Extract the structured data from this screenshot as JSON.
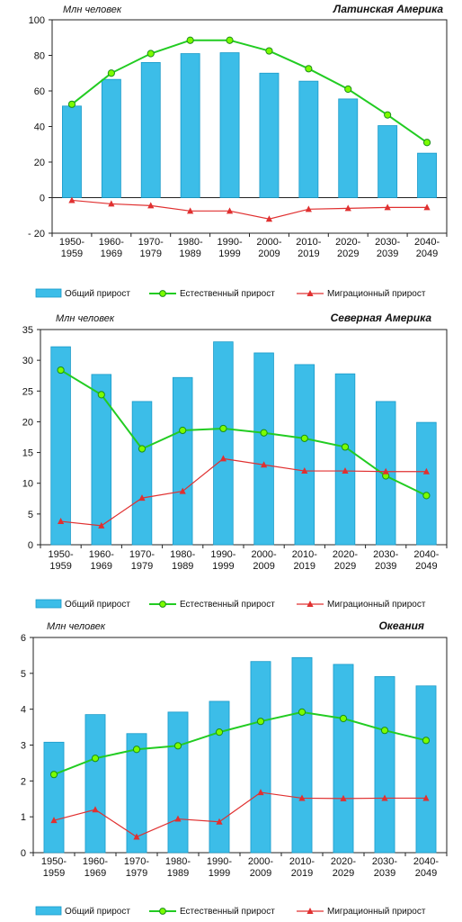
{
  "legend": {
    "total": "Общий прирост",
    "natural": "Естественный прирост",
    "migration": "Миграционный прирост"
  },
  "colors": {
    "bar": "#3cbde8",
    "bar_edge": "#1a9ac9",
    "natural": "#22cc22",
    "marker_fill": "#7cfc00",
    "migration": "#e03030"
  },
  "chart_data": [
    {
      "type": "bar",
      "title": "Латинская Америка",
      "ylabel": "Млн человек",
      "ylim": [
        -20,
        100
      ],
      "yticks": [
        -20,
        0,
        20,
        40,
        60,
        80,
        100
      ],
      "ytick_labels": [
        "- 20",
        "0",
        "20",
        "40",
        "60",
        "80",
        "100"
      ],
      "categories": [
        "1950-1959",
        "1960-1969",
        "1970-1979",
        "1980-1989",
        "1990-1999",
        "2000-2009",
        "2010-2019",
        "2020-2029",
        "2030-2039",
        "2040-2049"
      ],
      "series": [
        {
          "name": "Общий прирост",
          "type": "bar",
          "values": [
            51.5,
            66.5,
            76,
            81,
            81.5,
            70,
            65.5,
            55.5,
            40.5,
            25
          ]
        },
        {
          "name": "Естественный прирост",
          "type": "line",
          "values": [
            52.5,
            70,
            81,
            88.5,
            88.5,
            82.5,
            72.5,
            61,
            46.5,
            31
          ]
        },
        {
          "name": "Миграционный прирост",
          "type": "line",
          "values": [
            -1.5,
            -3.5,
            -4.5,
            -7.5,
            -7.5,
            -12,
            -6.5,
            -6,
            -5.5,
            -5.5
          ]
        }
      ]
    },
    {
      "type": "bar",
      "title": "Северная Америка",
      "ylabel": "Млн человек",
      "ylim": [
        0,
        35
      ],
      "yticks": [
        0,
        5,
        10,
        15,
        20,
        25,
        30,
        35
      ],
      "ytick_labels": [
        "0",
        "5",
        "10",
        "15",
        "20",
        "25",
        "30",
        "35"
      ],
      "categories": [
        "1950-1959",
        "1960-1969",
        "1970-1979",
        "1980-1989",
        "1990-1999",
        "2000-2009",
        "2010-2019",
        "2020-2029",
        "2030-2039",
        "2040-2049"
      ],
      "series": [
        {
          "name": "Общий прирост",
          "type": "bar",
          "values": [
            32.2,
            27.7,
            23.3,
            27.2,
            33,
            31.2,
            29.3,
            27.8,
            23.3,
            19.9
          ]
        },
        {
          "name": "Естественный прирост",
          "type": "line",
          "values": [
            28.4,
            24.4,
            15.6,
            18.6,
            18.9,
            18.2,
            17.3,
            15.9,
            11.2,
            8
          ]
        },
        {
          "name": "Миграционный прирост",
          "type": "line",
          "values": [
            3.8,
            3.1,
            7.6,
            8.7,
            14,
            13,
            12,
            12,
            11.9,
            11.9
          ]
        }
      ]
    },
    {
      "type": "bar",
      "title": "Океания",
      "ylabel": "Млн человек",
      "ylim": [
        0,
        6
      ],
      "yticks": [
        0,
        1,
        2,
        3,
        4,
        5,
        6
      ],
      "ytick_labels": [
        "0",
        "1",
        "2",
        "3",
        "4",
        "5",
        "6"
      ],
      "categories": [
        "1950-1959",
        "1960-1969",
        "1970-1979",
        "1980-1989",
        "1990-1999",
        "2000-2009",
        "2010-2019",
        "2020-2029",
        "2030-2039",
        "2040-2049"
      ],
      "series": [
        {
          "name": "Общий прирост",
          "type": "bar",
          "values": [
            3.08,
            3.85,
            3.32,
            3.92,
            4.22,
            5.33,
            5.44,
            5.25,
            4.91,
            4.65
          ]
        },
        {
          "name": "Естественный прирост",
          "type": "line",
          "values": [
            2.18,
            2.63,
            2.88,
            2.98,
            3.36,
            3.66,
            3.92,
            3.74,
            3.41,
            3.13
          ]
        },
        {
          "name": "Миграционный прирост",
          "type": "line",
          "values": [
            0.9,
            1.2,
            0.44,
            0.94,
            0.86,
            1.68,
            1.52,
            1.51,
            1.52,
            1.52
          ]
        }
      ]
    }
  ]
}
